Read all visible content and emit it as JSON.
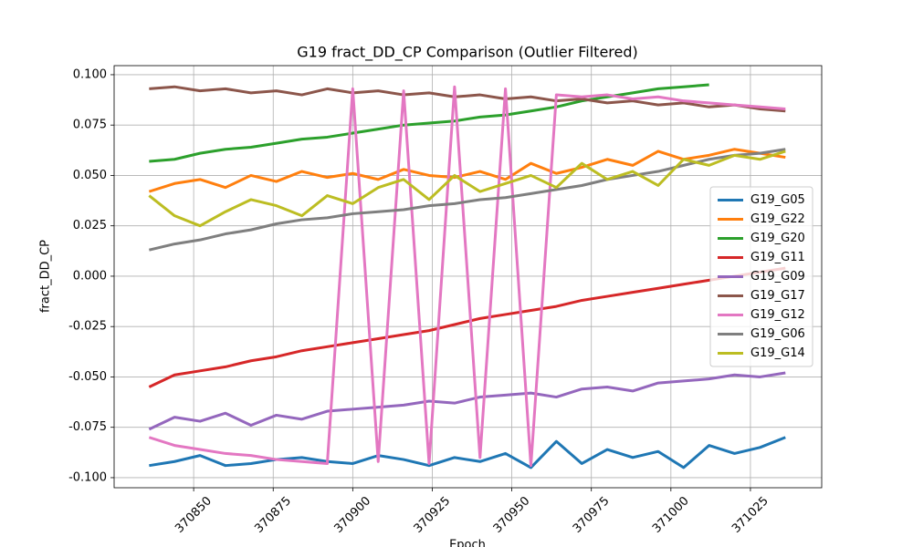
{
  "chart_data": {
    "type": "line",
    "title": "G19 fract_DD_CP Comparison (Outlier Filtered)",
    "xlabel": "Epoch",
    "ylabel": "fract_DD_CP",
    "x": [
      370836,
      370844,
      370852,
      370860,
      370868,
      370876,
      370884,
      370892,
      370900,
      370908,
      370916,
      370924,
      370932,
      370940,
      370948,
      370956,
      370964,
      370972,
      370980,
      370988,
      370996,
      371004,
      371012,
      371020,
      371028,
      371036
    ],
    "xlim": [
      370825,
      371047.4
    ],
    "xticks": [
      370850,
      370875,
      370900,
      370925,
      370950,
      370975,
      371000,
      371025
    ],
    "ylim": [
      -0.105,
      0.1045
    ],
    "yticks": [
      {
        "value": 0.1,
        "label": "0.100"
      },
      {
        "value": 0.075,
        "label": "0.075"
      },
      {
        "value": 0.05,
        "label": "0.050"
      },
      {
        "value": 0.025,
        "label": "0.025"
      },
      {
        "value": 0,
        "label": "0.000"
      },
      {
        "value": -0.025,
        "label": "-0.025"
      },
      {
        "value": -0.05,
        "label": "-0.050"
      },
      {
        "value": -0.075,
        "label": "-0.075"
      },
      {
        "value": -0.1,
        "label": "-0.100"
      }
    ],
    "grid": true,
    "legend": "center right",
    "series": [
      {
        "name": "G19_G05",
        "color": "#1f77b4",
        "values": [
          -0.094,
          -0.092,
          -0.089,
          -0.094,
          -0.093,
          -0.091,
          -0.09,
          -0.092,
          -0.093,
          -0.089,
          -0.091,
          -0.094,
          -0.09,
          -0.092,
          -0.088,
          -0.095,
          -0.082,
          -0.093,
          -0.086,
          -0.09,
          -0.087,
          -0.095,
          -0.084,
          -0.088,
          -0.085,
          -0.08
        ]
      },
      {
        "name": "G19_G22",
        "color": "#ff7f0e",
        "values": [
          0.042,
          0.046,
          0.048,
          0.044,
          0.05,
          0.047,
          0.052,
          0.049,
          0.051,
          0.048,
          0.053,
          0.05,
          0.049,
          0.052,
          0.048,
          0.056,
          0.051,
          0.054,
          0.058,
          0.055,
          0.062,
          0.058,
          0.06,
          0.063,
          0.061,
          0.059
        ]
      },
      {
        "name": "G19_G20",
        "color": "#2ca02c",
        "values": [
          0.057,
          0.058,
          0.061,
          0.063,
          0.064,
          0.066,
          0.068,
          0.069,
          0.071,
          0.073,
          0.075,
          0.076,
          0.077,
          0.079,
          0.08,
          0.082,
          0.084,
          0.087,
          0.089,
          0.091,
          0.093,
          0.094,
          0.095,
          null,
          null,
          null
        ]
      },
      {
        "name": "G19_G11",
        "color": "#d62728",
        "values": [
          -0.055,
          -0.049,
          -0.047,
          -0.045,
          -0.042,
          -0.04,
          -0.037,
          -0.035,
          -0.033,
          -0.031,
          -0.029,
          -0.027,
          -0.024,
          -0.021,
          -0.019,
          -0.017,
          -0.015,
          -0.012,
          -0.01,
          -0.008,
          -0.006,
          -0.004,
          -0.002,
          0.0,
          0.002,
          0.004
        ]
      },
      {
        "name": "G19_G09",
        "color": "#9467bd",
        "values": [
          -0.076,
          -0.07,
          -0.072,
          -0.068,
          -0.074,
          -0.069,
          -0.071,
          -0.067,
          -0.066,
          -0.065,
          -0.064,
          -0.062,
          -0.063,
          -0.06,
          -0.059,
          -0.058,
          -0.06,
          -0.056,
          -0.055,
          -0.057,
          -0.053,
          -0.052,
          -0.051,
          -0.049,
          -0.05,
          -0.048
        ]
      },
      {
        "name": "G19_G17",
        "color": "#8c564b",
        "values": [
          0.093,
          0.094,
          0.092,
          0.093,
          0.091,
          0.092,
          0.09,
          0.093,
          0.091,
          0.092,
          0.09,
          0.091,
          0.089,
          0.09,
          0.088,
          0.089,
          0.087,
          0.088,
          0.086,
          0.087,
          0.085,
          0.086,
          0.084,
          0.085,
          0.083,
          0.082
        ]
      },
      {
        "name": "G19_G12",
        "color": "#e377c2",
        "values": [
          -0.08,
          -0.084,
          -0.086,
          -0.088,
          -0.089,
          -0.091,
          -0.092,
          -0.093,
          0.093,
          -0.092,
          0.092,
          -0.093,
          0.094,
          -0.09,
          0.093,
          -0.094,
          0.09,
          0.089,
          0.09,
          0.088,
          0.089,
          0.087,
          0.086,
          0.085,
          0.084,
          0.083
        ]
      },
      {
        "name": "G19_G06",
        "color": "#7f7f7f",
        "values": [
          0.013,
          0.016,
          0.018,
          0.021,
          0.023,
          0.026,
          0.028,
          0.029,
          0.031,
          0.032,
          0.033,
          0.035,
          0.036,
          0.038,
          0.039,
          0.041,
          0.043,
          0.045,
          0.048,
          0.05,
          0.052,
          0.055,
          0.058,
          0.06,
          0.061,
          0.063
        ]
      },
      {
        "name": "G19_G14",
        "color": "#bcbd22",
        "values": [
          0.04,
          0.03,
          0.025,
          0.032,
          0.038,
          0.035,
          0.03,
          0.04,
          0.036,
          0.044,
          0.048,
          0.038,
          0.05,
          0.042,
          0.046,
          0.05,
          0.044,
          0.056,
          0.048,
          0.052,
          0.045,
          0.058,
          0.055,
          0.06,
          0.058,
          0.062
        ]
      }
    ]
  }
}
